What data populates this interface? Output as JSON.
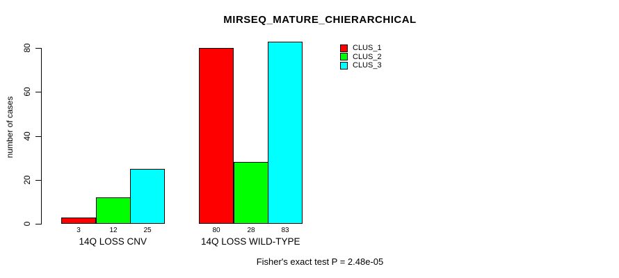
{
  "chart_data": {
    "type": "bar",
    "title": "MIRSEQ_MATURE_CHIERARCHICAL",
    "ylabel": "number of cases",
    "xlabel": "",
    "ylim": [
      0,
      80
    ],
    "yticks": [
      0,
      20,
      40,
      60,
      80
    ],
    "categories": [
      "14Q LOSS CNV",
      "14Q LOSS WILD-TYPE"
    ],
    "series": [
      {
        "name": "CLUS_1",
        "color": "#ff0000",
        "values": [
          3,
          80
        ]
      },
      {
        "name": "CLUS_2",
        "color": "#00ff00",
        "values": [
          12,
          28
        ]
      },
      {
        "name": "CLUS_3",
        "color": "#00ffff",
        "values": [
          25,
          83
        ]
      }
    ],
    "bar_value_labels": [
      [
        "3",
        "12",
        "25"
      ],
      [
        "80",
        "28",
        "83"
      ]
    ],
    "legend_position": "top-right",
    "grid": false,
    "annotation": "Fisher's exact test P = 2.48e-05",
    "axis_color": "#000000",
    "background_color": "#ffffff"
  }
}
